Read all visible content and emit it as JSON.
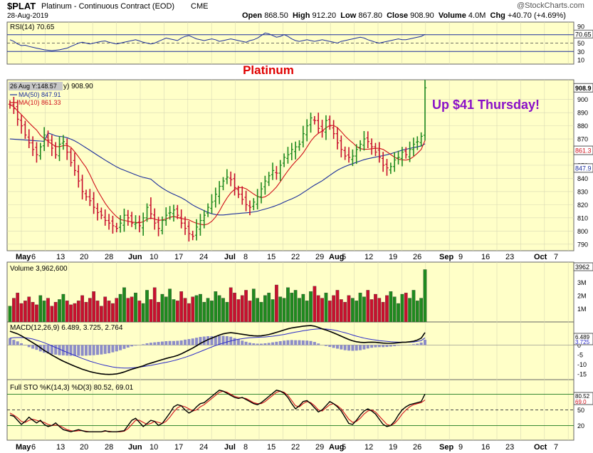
{
  "header": {
    "symbol": "$PLAT",
    "name": "Platinum - Continuous Contract (EOD)",
    "exchange": "CME",
    "date": "28-Aug-2019",
    "brand": "@StockCharts.com",
    "open_label": "Open",
    "open": "868.50",
    "high_label": "High",
    "high": "912.20",
    "low_label": "Low",
    "low": "867.80",
    "close_label": "Close",
    "close": "908.90",
    "volume_label": "Volume",
    "volume": "4.0M",
    "chg_label": "Chg",
    "chg": "+40.70 (+4.69%)"
  },
  "annotations": {
    "title": "Platinum",
    "note": "Up $41 Thursday!",
    "cursor_box": "26 Aug Y:148.57"
  },
  "colors": {
    "panel_bg": "#ffffc8",
    "up": "#1f8a1f",
    "down": "#c8102e",
    "ma50": "#1c2f9c",
    "ma10": "#d0101a",
    "title_red": "#e00000",
    "note_purple": "#8a10c8",
    "macd_hist": "#8c8cc8"
  },
  "chart_data": [
    {
      "type": "line",
      "panel": "rsi",
      "title": "RSI(14) 70.65",
      "last_value": "70.65",
      "ticks": [
        "90",
        "70",
        "50",
        "30",
        "10"
      ],
      "ylim": [
        0,
        100
      ],
      "reference_lines": [
        70,
        50,
        30
      ],
      "values": [
        58,
        54,
        48,
        44,
        45,
        42,
        40,
        38,
        36,
        34,
        33,
        32,
        33,
        34,
        36,
        38,
        42,
        46,
        50,
        52,
        50,
        48,
        50,
        52,
        54,
        55,
        52,
        50,
        48,
        50,
        52,
        54,
        56,
        58,
        55,
        52,
        50,
        48,
        50,
        54,
        58,
        62,
        60,
        58,
        56,
        62,
        66,
        68,
        64,
        60,
        58,
        56,
        58,
        60,
        58,
        54,
        56,
        58,
        60,
        58,
        56,
        54,
        52,
        56,
        58,
        62,
        68,
        74,
        72,
        68,
        64,
        66,
        70,
        66,
        60,
        56,
        54,
        56,
        58,
        56,
        54,
        56,
        58,
        56,
        54,
        52,
        50,
        54,
        56,
        58,
        60,
        62,
        64,
        62,
        58,
        55,
        52,
        50,
        52,
        54,
        56,
        58,
        60,
        58,
        58,
        60,
        62,
        64,
        66,
        70.65
      ]
    },
    {
      "type": "ohlc",
      "panel": "price",
      "title": "Platinum",
      "ylim": [
        785,
        915
      ],
      "ticks": [
        "900",
        "890",
        "880",
        "870",
        "860",
        "850",
        "840",
        "830",
        "820",
        "810",
        "800",
        "790"
      ],
      "last_value": "908.9",
      "ma50_label": "MA(50) 847.91",
      "ma50_value": "847.91",
      "ma10_label": "MA(10) 861.33",
      "ma10_value": "861.33",
      "price_label": "908.90",
      "x_labels": [
        "May",
        "6",
        "13",
        "20",
        "28",
        "Jun",
        "10",
        "17",
        "24",
        "Jul",
        "8",
        "15",
        "22",
        "29",
        "Aug",
        "5",
        "12",
        "19",
        "26",
        "Sep",
        "9",
        "16",
        "23",
        "Oct",
        "7"
      ],
      "close": [
        896,
        893,
        885,
        880,
        873,
        867,
        862,
        858,
        864,
        873,
        869,
        863,
        858,
        866,
        868,
        860,
        852,
        846,
        838,
        830,
        826,
        823,
        818,
        814,
        812,
        808,
        806,
        804,
        802,
        806,
        812,
        810,
        806,
        806,
        804,
        810,
        818,
        813,
        806,
        802,
        808,
        812,
        814,
        816,
        812,
        806,
        802,
        798,
        796,
        803,
        808,
        812,
        818,
        822,
        828,
        834,
        838,
        841,
        839,
        833,
        828,
        824,
        820,
        818,
        822,
        826,
        832,
        838,
        842,
        846,
        844,
        850,
        856,
        858,
        862,
        864,
        866,
        874,
        880,
        886,
        884,
        878,
        876,
        884,
        880,
        874,
        867,
        862,
        857,
        856,
        857,
        862,
        866,
        870,
        868,
        864,
        860,
        856,
        850,
        848,
        849,
        854,
        856,
        860,
        858,
        862,
        866,
        868,
        872,
        908.9
      ]
    },
    {
      "type": "bar",
      "panel": "volume",
      "title": "Volume 3,962,600",
      "last_value": "3962",
      "ticks": [
        "3M",
        "2M",
        "1M"
      ],
      "ylim": [
        0,
        4.2
      ],
      "values_millions": [
        1.2,
        1.8,
        2.2,
        1.4,
        1.6,
        1.9,
        1.5,
        1.3,
        2.0,
        1.6,
        1.8,
        1.2,
        1.5,
        1.7,
        2.1,
        1.6,
        1.3,
        1.4,
        1.6,
        2.0,
        1.5,
        1.8,
        2.3,
        1.6,
        1.2,
        1.9,
        1.6,
        1.4,
        1.8,
        2.1,
        2.6,
        1.8,
        1.9,
        2.2,
        1.6,
        1.4,
        2.4,
        1.7,
        2.6,
        1.5,
        2.1,
        1.9,
        2.5,
        1.7,
        1.6,
        2.3,
        1.8,
        1.4,
        1.9,
        2.0,
        2.1,
        1.5,
        1.8,
        1.6,
        2.3,
        2.0,
        1.8,
        1.5,
        2.6,
        2.2,
        1.7,
        2.0,
        2.4,
        1.6,
        2.5,
        1.8,
        1.5,
        2.0,
        2.2,
        1.7,
        2.8,
        1.9,
        1.8,
        2.6,
        2.2,
        2.4,
        1.8,
        2.1,
        1.6,
        2.3,
        2.7,
        2.0,
        1.8,
        2.2,
        1.6,
        2.0,
        2.4,
        1.7,
        1.5,
        2.0,
        1.8,
        1.6,
        2.2,
        1.9,
        2.4,
        1.7,
        2.1,
        1.8,
        1.5,
        2.0,
        2.3,
        1.9,
        1.4,
        2.1,
        2.2,
        1.8,
        2.4,
        1.6,
        1.8,
        3.96
      ]
    },
    {
      "type": "line",
      "panel": "macd",
      "title": "MACD(12,26,9) 6.489, 3.725, 2.764",
      "values_label": "6.489, 3.725, 2.764",
      "ticks": [
        "5",
        "0",
        "-5",
        "-10",
        "-15"
      ],
      "ylim": [
        -18,
        12
      ],
      "last_values": [
        "6.489",
        "3.725"
      ],
      "macd_values": [
        7.2,
        6.5,
        5.8,
        4.8,
        3.6,
        2.4,
        1.2,
        0.0,
        -1.4,
        -2.8,
        -4.0,
        -5.2,
        -6.3,
        -7.4,
        -8.4,
        -9.3,
        -10.2,
        -11.0,
        -11.8,
        -12.6,
        -13.2,
        -13.8,
        -14.3,
        -14.7,
        -15.0,
        -15.2,
        -15.3,
        -15.2,
        -15.0,
        -14.6,
        -14.0,
        -13.3,
        -12.6,
        -12.0,
        -11.4,
        -10.8,
        -10.0,
        -9.4,
        -8.8,
        -8.2,
        -7.6,
        -7.0,
        -6.5,
        -6.0,
        -5.4,
        -4.6,
        -3.6,
        -2.6,
        -1.6,
        -0.4,
        0.8,
        1.8,
        2.8,
        3.6,
        4.4,
        5.2,
        5.8,
        6.2,
        6.4,
        6.2,
        5.9,
        5.6,
        5.3,
        5.0,
        4.8,
        4.7,
        4.8,
        5.1,
        5.5,
        6.0,
        6.6,
        7.2,
        7.8,
        8.4,
        8.9,
        9.2,
        9.5,
        9.8,
        10.0,
        10.1,
        9.8,
        9.2,
        8.4,
        7.8,
        7.1,
        6.3,
        5.5,
        4.6,
        3.7,
        2.9,
        2.2,
        1.7,
        1.4,
        1.3,
        1.4,
        1.5,
        1.4,
        1.2,
        1.0,
        0.9,
        0.9,
        1.0,
        1.2,
        1.4,
        1.5,
        1.7,
        2.0,
        2.6,
        3.6,
        6.489
      ],
      "signal_values": [
        3.6,
        3.8,
        3.9,
        3.9,
        3.8,
        3.5,
        3.1,
        2.5,
        1.9,
        1.2,
        0.4,
        -0.4,
        -1.3,
        -2.1,
        -3.0,
        -3.8,
        -4.6,
        -5.4,
        -6.2,
        -7.0,
        -7.7,
        -8.4,
        -9.0,
        -9.6,
        -10.1,
        -10.6,
        -11.0,
        -11.4,
        -11.7,
        -11.9,
        -12.0,
        -12.0,
        -11.9,
        -11.7,
        -11.5,
        -11.2,
        -10.9,
        -10.6,
        -10.2,
        -9.8,
        -9.4,
        -9.0,
        -8.6,
        -8.1,
        -7.6,
        -7.0,
        -6.4,
        -5.7,
        -5.0,
        -4.2,
        -3.4,
        -2.6,
        -1.8,
        -1.0,
        -0.3,
        0.4,
        1.0,
        1.6,
        2.1,
        2.6,
        3.0,
        3.3,
        3.6,
        3.8,
        3.9,
        4.0,
        4.1,
        4.2,
        4.4,
        4.6,
        4.9,
        5.2,
        5.5,
        5.9,
        6.3,
        6.7,
        7.0,
        7.4,
        7.7,
        8.0,
        8.2,
        8.4,
        8.4,
        8.3,
        8.1,
        7.8,
        7.4,
        6.9,
        6.4,
        5.8,
        5.2,
        4.6,
        4.1,
        3.6,
        3.2,
        2.9,
        2.6,
        2.3,
        2.1,
        1.9,
        1.7,
        1.6,
        1.5,
        1.5,
        1.5,
        1.5,
        1.6,
        1.9,
        2.3,
        3.725
      ]
    },
    {
      "type": "line",
      "panel": "stochastic",
      "title": "Full STO %K(14,3) %D(3) 80.52, 69.01",
      "values_label": "80.52, 69.01",
      "ticks": [
        "80",
        "50",
        "20"
      ],
      "ylim": [
        0,
        100
      ],
      "last_values": [
        "80.52",
        "69.0"
      ],
      "k_values": [
        40,
        38,
        30,
        22,
        28,
        36,
        30,
        25,
        30,
        22,
        18,
        20,
        25,
        18,
        12,
        10,
        8,
        10,
        12,
        10,
        8,
        8,
        8,
        8,
        8,
        10,
        8,
        8,
        8,
        9,
        10,
        20,
        30,
        34,
        26,
        18,
        24,
        30,
        28,
        20,
        24,
        34,
        44,
        56,
        60,
        58,
        50,
        44,
        48,
        56,
        62,
        64,
        70,
        76,
        82,
        88,
        86,
        82,
        78,
        74,
        72,
        74,
        70,
        66,
        62,
        60,
        64,
        70,
        76,
        82,
        88,
        86,
        82,
        74,
        62,
        52,
        58,
        66,
        68,
        62,
        54,
        46,
        50,
        58,
        66,
        62,
        56,
        48,
        36,
        24,
        22,
        30,
        40,
        48,
        52,
        48,
        42,
        32,
        22,
        18,
        20,
        28,
        40,
        50,
        56,
        60,
        62,
        64,
        66,
        80.52
      ],
      "d_values": [
        44,
        40,
        35,
        28,
        26,
        30,
        32,
        30,
        28,
        26,
        22,
        20,
        21,
        20,
        16,
        12,
        10,
        9,
        10,
        10,
        9,
        8,
        8,
        8,
        8,
        9,
        9,
        8,
        8,
        8,
        9,
        14,
        22,
        30,
        30,
        26,
        22,
        24,
        28,
        26,
        24,
        28,
        36,
        46,
        54,
        58,
        56,
        52,
        48,
        50,
        56,
        60,
        66,
        72,
        78,
        84,
        86,
        84,
        80,
        76,
        74,
        73,
        72,
        68,
        64,
        62,
        62,
        66,
        72,
        78,
        84,
        86,
        84,
        78,
        68,
        58,
        56,
        62,
        66,
        64,
        58,
        50,
        48,
        54,
        60,
        62,
        58,
        52,
        42,
        32,
        26,
        28,
        34,
        42,
        48,
        50,
        46,
        38,
        30,
        22,
        20,
        24,
        32,
        42,
        50,
        56,
        60,
        62,
        64,
        69.01
      ]
    }
  ]
}
